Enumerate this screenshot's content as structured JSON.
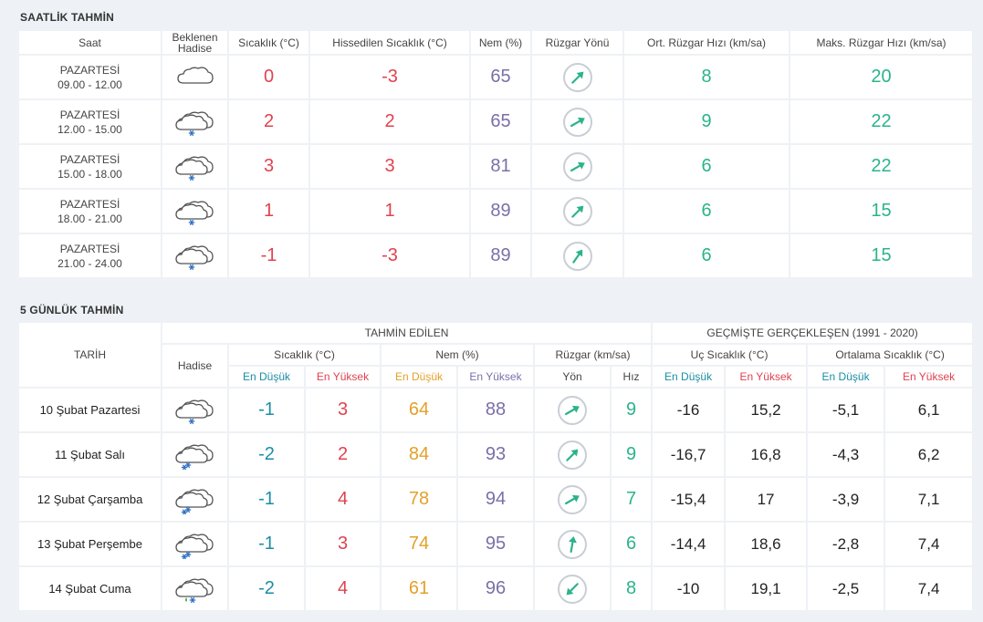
{
  "hourly": {
    "title": "SAATLİK TAHMİN",
    "headers": {
      "saat": "Saat",
      "hadise": "Beklenen Hadise",
      "sicaklik": "Sıcaklık (°C)",
      "hissedilen": "Hissedilen Sıcaklık (°C)",
      "nem": "Nem (%)",
      "ruzgar_yonu": "Rüzgar Yönü",
      "ort_ruzgar": "Ort. Rüzgar Hızı (km/sa)",
      "maks_ruzgar": "Maks. Rüzgar Hızı (km/sa)"
    },
    "rows": [
      {
        "day": "PAZARTESİ",
        "time": "09.00 - 12.00",
        "icon": "cloudy-icon",
        "temp": "0",
        "feels": "-3",
        "humidity": "65",
        "wind_dir_deg": 225,
        "wind_avg": "8",
        "wind_max": "20"
      },
      {
        "day": "PAZARTESİ",
        "time": "12.00 - 15.00",
        "icon": "cloud-snow-icon",
        "temp": "2",
        "feels": "2",
        "humidity": "65",
        "wind_dir_deg": 240,
        "wind_avg": "9",
        "wind_max": "22"
      },
      {
        "day": "PAZARTESİ",
        "time": "15.00 - 18.00",
        "icon": "cloud-snow-icon",
        "temp": "3",
        "feels": "3",
        "humidity": "81",
        "wind_dir_deg": 240,
        "wind_avg": "6",
        "wind_max": "22"
      },
      {
        "day": "PAZARTESİ",
        "time": "18.00 - 21.00",
        "icon": "cloud-snow-icon",
        "temp": "1",
        "feels": "1",
        "humidity": "89",
        "wind_dir_deg": 225,
        "wind_avg": "6",
        "wind_max": "15"
      },
      {
        "day": "PAZARTESİ",
        "time": "21.00 - 24.00",
        "icon": "cloud-snow-icon",
        "temp": "-1",
        "feels": "-3",
        "humidity": "89",
        "wind_dir_deg": 215,
        "wind_avg": "6",
        "wind_max": "15"
      }
    ]
  },
  "daily": {
    "title": "5 GÜNLÜK TAHMİN",
    "headers": {
      "tarih": "TARİH",
      "tahmin_edilen": "TAHMİN EDİLEN",
      "gecmis": "GEÇMİŞTE GERÇEKLEŞEN (1991 - 2020)",
      "hadise": "Hadise",
      "sicaklik": "Sıcaklık (°C)",
      "nem": "Nem (%)",
      "ruzgar": "Rüzgar (km/sa)",
      "uc_sicaklik": "Uç Sıcaklık (°C)",
      "ort_sicaklik": "Ortalama Sıcaklık (°C)",
      "en_dusuk": "En Düşük",
      "en_yuksek": "En Yüksek",
      "yon": "Yön",
      "hiz": "Hız"
    },
    "rows": [
      {
        "date": "10 Şubat Pazartesi",
        "icon": "cloud-snow-icon",
        "t_min": "-1",
        "t_max": "3",
        "h_min": "64",
        "h_max": "88",
        "wind_dir_deg": 240,
        "wind_speed": "9",
        "ext_min": "-16",
        "ext_max": "15,2",
        "avg_min": "-5,1",
        "avg_max": "6,1"
      },
      {
        "date": "11 Şubat Salı",
        "icon": "cloud-heavy-snow-icon",
        "t_min": "-2",
        "t_max": "2",
        "h_min": "84",
        "h_max": "93",
        "wind_dir_deg": 225,
        "wind_speed": "9",
        "ext_min": "-16,7",
        "ext_max": "16,8",
        "avg_min": "-4,3",
        "avg_max": "6,2"
      },
      {
        "date": "12 Şubat Çarşamba",
        "icon": "cloud-heavy-snow-icon",
        "t_min": "-1",
        "t_max": "4",
        "h_min": "78",
        "h_max": "94",
        "wind_dir_deg": 240,
        "wind_speed": "7",
        "ext_min": "-15,4",
        "ext_max": "17",
        "avg_min": "-3,9",
        "avg_max": "7,1"
      },
      {
        "date": "13 Şubat Perşembe",
        "icon": "cloud-heavy-snow-icon",
        "t_min": "-1",
        "t_max": "3",
        "h_min": "74",
        "h_max": "95",
        "wind_dir_deg": 190,
        "wind_speed": "6",
        "ext_min": "-14,4",
        "ext_max": "18,6",
        "avg_min": "-2,8",
        "avg_max": "7,4"
      },
      {
        "date": "14 Şubat Cuma",
        "icon": "cloud-sleet-icon",
        "t_min": "-2",
        "t_max": "4",
        "h_min": "61",
        "h_max": "96",
        "wind_dir_deg": 45,
        "wind_speed": "8",
        "ext_min": "-10",
        "ext_max": "19,1",
        "avg_min": "-2,5",
        "avg_max": "7,4"
      }
    ]
  },
  "colors": {
    "red": "#e0424f",
    "blue": "#1a8ea5",
    "green": "#2bb38b",
    "purple": "#7b6fa8",
    "orange": "#e2a12a",
    "background": "#eef1f5"
  }
}
